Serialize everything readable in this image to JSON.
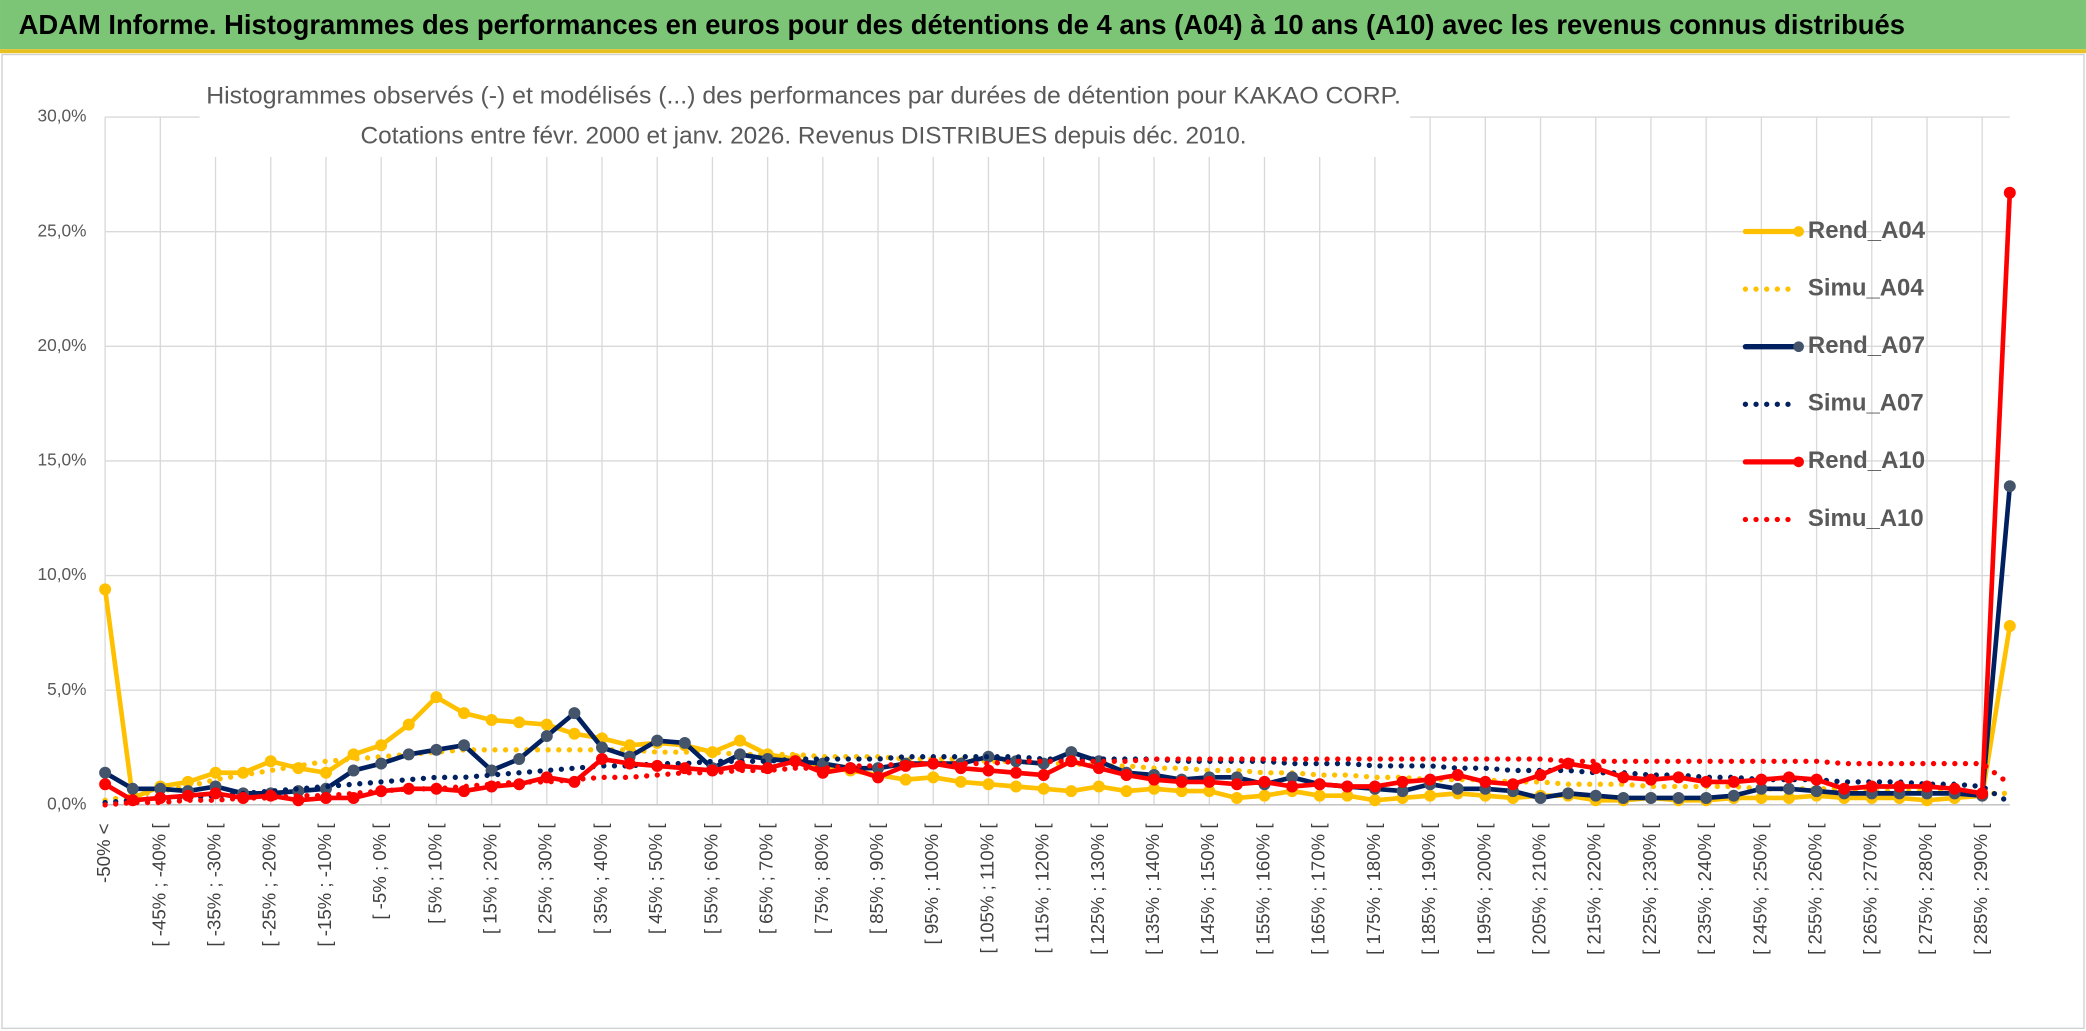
{
  "header": {
    "title": "ADAM Informe. Histogrammes des performances en euros pour des détentions de 4 ans (A04) à 10 ans (A10) avec les revenus connus distribués"
  },
  "chart_data": {
    "type": "line",
    "title": "Histogrammes observés (-) et modélisés (...) des performances par durées de détention pour KAKAO CORP.",
    "subtitle": "Cotations entre févr. 2000 et janv. 2026. Revenus DISTRIBUES depuis déc. 2010.",
    "categories": [
      "-50% <",
      null,
      "[ -45% ; -40% [",
      null,
      "[ -35% ; -30% [",
      null,
      "[ -25% ; -20% [",
      null,
      "[ -15% ; -10% [",
      null,
      "[ -5% ; 0% [",
      null,
      "[ 5% ; 10% [",
      null,
      "[ 15% ; 20% [",
      null,
      "[ 25% ; 30% [",
      null,
      "[ 35% ; 40% [",
      null,
      "[ 45% ; 50% [",
      null,
      "[ 55% ; 60% [",
      null,
      "[ 65% ; 70% [",
      null,
      "[ 75% ; 80% [",
      null,
      "[ 85% ; 90% [",
      null,
      "[ 95% ; 100% [",
      null,
      "[ 105% ; 110% [",
      null,
      "[ 115% ; 120% [",
      null,
      "[ 125% ; 130% [",
      null,
      "[ 135% ; 140% [",
      null,
      "[ 145% ; 150% [",
      null,
      "[ 155% ; 160% [",
      null,
      "[ 165% ; 170% [",
      null,
      "[ 175% ; 180% [",
      null,
      "[ 185% ; 190% [",
      null,
      "[ 195% ; 200% [",
      null,
      "[ 205% ; 210% [",
      null,
      "[ 215% ; 220% [",
      null,
      "[ 225% ; 230% [",
      null,
      "[ 235% ; 240% [",
      null,
      "[ 245% ; 250% [",
      null,
      "[ 255% ; 260% [",
      null,
      "[ 265% ; 270% [",
      null,
      "[ 275% ; 280% [",
      null,
      "[ 285% ; 290% [",
      null
    ],
    "series": [
      {
        "name": "Rend_A04",
        "color": "#ffc000",
        "style": "solid",
        "markers": true,
        "values": [
          9.4,
          0.3,
          0.8,
          1.0,
          1.4,
          1.4,
          1.9,
          1.6,
          1.4,
          2.2,
          2.6,
          3.5,
          4.7,
          4.0,
          3.7,
          3.6,
          3.5,
          3.1,
          2.9,
          2.6,
          2.7,
          2.6,
          2.3,
          2.8,
          2.2,
          2.0,
          1.6,
          1.5,
          1.3,
          1.1,
          1.2,
          1.0,
          0.9,
          0.8,
          0.7,
          0.6,
          0.8,
          0.6,
          0.7,
          0.6,
          0.6,
          0.3,
          0.4,
          0.6,
          0.4,
          0.4,
          0.2,
          0.3,
          0.4,
          0.5,
          0.4,
          0.3,
          0.4,
          0.4,
          0.2,
          0.2,
          0.3,
          0.2,
          0.2,
          0.3,
          0.3,
          0.3,
          0.4,
          0.3,
          0.3,
          0.3,
          0.2,
          0.3,
          0.4,
          7.8
        ]
      },
      {
        "name": "Simu_A04",
        "color": "#ffc000",
        "style": "dotted",
        "markers": false,
        "values": [
          0.2,
          0.4,
          0.6,
          0.8,
          1.1,
          1.3,
          1.5,
          1.7,
          1.9,
          2.0,
          2.1,
          2.2,
          2.3,
          2.4,
          2.4,
          2.4,
          2.4,
          2.4,
          2.4,
          2.4,
          2.3,
          2.3,
          2.3,
          2.2,
          2.2,
          2.2,
          2.1,
          2.1,
          2.1,
          2.0,
          2.0,
          2.0,
          1.9,
          1.9,
          1.8,
          1.8,
          1.7,
          1.7,
          1.6,
          1.6,
          1.5,
          1.5,
          1.4,
          1.4,
          1.3,
          1.3,
          1.2,
          1.2,
          1.1,
          1.1,
          1.1,
          1.0,
          1.0,
          0.9,
          0.9,
          0.9,
          0.8,
          0.8,
          0.8,
          0.8,
          0.7,
          0.7,
          0.7,
          0.7,
          0.6,
          0.6,
          0.6,
          0.6,
          0.5,
          0.5
        ]
      },
      {
        "name": "Rend_A07",
        "color": "#002060",
        "style": "solid",
        "markers": true,
        "values": [
          1.4,
          0.7,
          0.7,
          0.6,
          0.8,
          0.5,
          0.5,
          0.6,
          0.7,
          1.5,
          1.8,
          2.2,
          2.4,
          2.6,
          1.5,
          2.0,
          3.0,
          4.0,
          2.5,
          2.1,
          2.8,
          2.7,
          1.6,
          2.2,
          2.0,
          1.9,
          1.8,
          1.6,
          1.6,
          1.8,
          1.8,
          1.8,
          2.1,
          1.9,
          1.8,
          2.3,
          1.9,
          1.4,
          1.3,
          1.1,
          1.2,
          1.2,
          0.9,
          1.2,
          0.9,
          0.8,
          0.7,
          0.6,
          0.9,
          0.7,
          0.7,
          0.6,
          0.3,
          0.5,
          0.4,
          0.3,
          0.3,
          0.3,
          0.3,
          0.4,
          0.7,
          0.7,
          0.6,
          0.5,
          0.5,
          0.5,
          0.5,
          0.5,
          0.4,
          13.9
        ]
      },
      {
        "name": "Simu_A07",
        "color": "#002060",
        "style": "dotted",
        "markers": false,
        "values": [
          0.1,
          0.2,
          0.3,
          0.3,
          0.4,
          0.5,
          0.6,
          0.7,
          0.8,
          0.9,
          1.0,
          1.1,
          1.2,
          1.2,
          1.3,
          1.4,
          1.5,
          1.6,
          1.7,
          1.7,
          1.8,
          1.8,
          1.9,
          1.9,
          1.9,
          2.0,
          2.0,
          2.0,
          2.0,
          2.1,
          2.1,
          2.1,
          2.1,
          2.1,
          2.0,
          2.0,
          2.0,
          2.0,
          2.0,
          1.9,
          1.9,
          1.9,
          1.9,
          1.8,
          1.8,
          1.8,
          1.7,
          1.7,
          1.7,
          1.6,
          1.6,
          1.5,
          1.5,
          1.5,
          1.4,
          1.4,
          1.3,
          1.3,
          1.2,
          1.2,
          1.1,
          1.1,
          1.1,
          1.0,
          1.0,
          1.0,
          0.9,
          0.9,
          0.8,
          0.1
        ]
      },
      {
        "name": "Rend_A10",
        "color": "#ff0000",
        "style": "solid",
        "markers": true,
        "values": [
          0.9,
          0.2,
          0.3,
          0.4,
          0.5,
          0.3,
          0.4,
          0.2,
          0.3,
          0.3,
          0.6,
          0.7,
          0.7,
          0.6,
          0.8,
          0.9,
          1.2,
          1.0,
          2.0,
          1.8,
          1.7,
          1.6,
          1.5,
          1.7,
          1.6,
          1.9,
          1.4,
          1.6,
          1.2,
          1.7,
          1.8,
          1.6,
          1.5,
          1.4,
          1.3,
          1.9,
          1.6,
          1.3,
          1.1,
          1.0,
          1.0,
          0.9,
          1.0,
          0.8,
          0.9,
          0.8,
          0.8,
          1.0,
          1.1,
          1.3,
          1.0,
          0.9,
          1.3,
          1.8,
          1.6,
          1.2,
          1.1,
          1.2,
          1.0,
          1.0,
          1.1,
          1.2,
          1.1,
          0.7,
          0.8,
          0.8,
          0.8,
          0.7,
          0.5,
          26.7
        ]
      },
      {
        "name": "Simu_A10",
        "color": "#ff0000",
        "style": "dotted",
        "markers": false,
        "values": [
          0.0,
          0.1,
          0.1,
          0.2,
          0.2,
          0.3,
          0.3,
          0.4,
          0.4,
          0.5,
          0.6,
          0.7,
          0.7,
          0.8,
          0.9,
          1.0,
          1.0,
          1.1,
          1.2,
          1.2,
          1.3,
          1.4,
          1.4,
          1.5,
          1.5,
          1.6,
          1.6,
          1.7,
          1.7,
          1.8,
          1.8,
          1.8,
          1.8,
          1.9,
          1.9,
          1.9,
          1.9,
          1.9,
          2.0,
          2.0,
          2.0,
          2.0,
          2.0,
          2.0,
          2.0,
          2.0,
          2.0,
          2.0,
          2.0,
          2.0,
          2.0,
          2.0,
          2.0,
          1.9,
          1.9,
          1.9,
          1.9,
          1.9,
          1.9,
          1.9,
          1.9,
          1.9,
          1.9,
          1.8,
          1.8,
          1.8,
          1.8,
          1.8,
          1.8,
          0.9
        ]
      }
    ],
    "ylim": [
      0,
      30
    ],
    "yticks": [
      {
        "value": 0,
        "label": "0,0%"
      },
      {
        "value": 5,
        "label": "5,0%"
      },
      {
        "value": 10,
        "label": "10,0%"
      },
      {
        "value": 15,
        "label": "15,0%"
      },
      {
        "value": 20,
        "label": "20,0%"
      },
      {
        "value": 25,
        "label": "25,0%"
      },
      {
        "value": 30,
        "label": "30,0%"
      }
    ],
    "grid": true,
    "legend": "right"
  }
}
